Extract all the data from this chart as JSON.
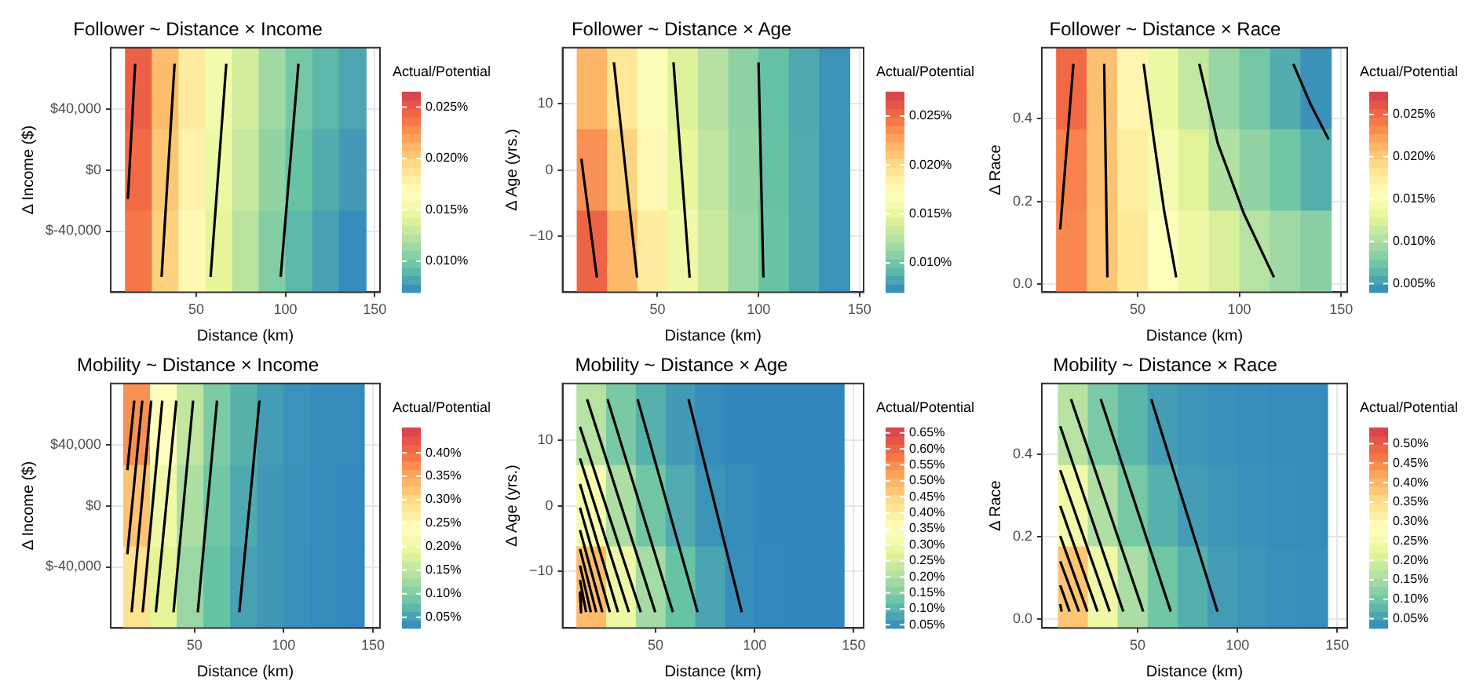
{
  "chart_data": [
    {
      "type": "heatmap",
      "title": "Follower ~ Distance × Income",
      "xlabel": "Distance (km)",
      "ylabel": "Δ Income ($)",
      "clabel": "Actual/Potential",
      "grid": true,
      "xlim": [
        2,
        153
      ],
      "xticks": [
        50,
        100,
        150
      ],
      "ylim": [
        -80000,
        80000
      ],
      "yticks": [
        {
          "value": -40000,
          "label": "$-40,000"
        },
        {
          "value": 0,
          "label": "$0"
        },
        {
          "value": 40000,
          "label": "$40,000"
        }
      ],
      "x": [
        17.5,
        32.5,
        47.5,
        62.5,
        77.5,
        92.5,
        107.5,
        122.5,
        137.5
      ],
      "cells": [
        [
          0.0247,
          0.0209,
          0.0182,
          0.0155,
          0.0135,
          0.0115,
          0.01,
          0.009,
          0.0082
        ],
        [
          0.0242,
          0.0204,
          0.0177,
          0.015,
          0.013,
          0.011,
          0.0095,
          0.0085,
          0.0077
        ],
        [
          0.0237,
          0.0199,
          0.0172,
          0.0145,
          0.0125,
          0.0105,
          0.009,
          0.008,
          0.0072
        ]
      ],
      "clim": [
        0.007,
        0.0265
      ],
      "cticks": [
        {
          "value": 0.01,
          "label": "0.010%"
        },
        {
          "value": 0.015,
          "label": "0.015%"
        },
        {
          "value": 0.02,
          "label": "0.020%"
        },
        {
          "value": 0.025,
          "label": "0.025%"
        }
      ],
      "series": [
        {
          "type": "line",
          "color": "#000000",
          "x": [
            11.6,
            15.7
          ],
          "values": [
            -19000,
            69500
          ]
        },
        {
          "type": "line",
          "color": "#000000",
          "x": [
            30.5,
            37.8
          ],
          "values": [
            -70000,
            69500
          ]
        },
        {
          "type": "line",
          "color": "#000000",
          "x": [
            58,
            66.8
          ],
          "values": [
            -70000,
            69500
          ]
        },
        {
          "type": "line",
          "color": "#000000",
          "x": [
            97.3,
            107.3
          ],
          "values": [
            -70000,
            69500
          ]
        }
      ]
    },
    {
      "type": "heatmap",
      "title": "Follower ~ Distance × Age",
      "xlabel": "Distance (km)",
      "ylabel": "Δ Age (yrs.)",
      "clabel": "Actual/Potential",
      "grid": true,
      "xlim": [
        3,
        152
      ],
      "xticks": [
        50,
        100,
        150
      ],
      "ylim": [
        -18.4,
        18.4
      ],
      "yticks": [
        {
          "value": -10,
          "label": "−10"
        },
        0,
        10
      ],
      "x": [
        17.5,
        32.5,
        47.5,
        62.5,
        77.5,
        92.5,
        107.5,
        122.5,
        137.5
      ],
      "cells": [
        [
          0.022,
          0.0192,
          0.0168,
          0.0143,
          0.0126,
          0.011,
          0.0095,
          0.0084,
          0.0075
        ],
        [
          0.0235,
          0.0205,
          0.0178,
          0.015,
          0.013,
          0.0112,
          0.0096,
          0.0085,
          0.0075
        ],
        [
          0.0255,
          0.0218,
          0.0188,
          0.0157,
          0.0134,
          0.0114,
          0.0097,
          0.0086,
          0.0075
        ]
      ],
      "clim": [
        0.007,
        0.0275
      ],
      "cticks": [
        {
          "value": 0.01,
          "label": "0.010%"
        },
        {
          "value": 0.015,
          "label": "0.015%"
        },
        {
          "value": 0.02,
          "label": "0.020%"
        },
        {
          "value": 0.025,
          "label": "0.025%"
        }
      ],
      "series": [
        {
          "type": "line",
          "color": "#000000",
          "x": [
            12.3,
            20
          ],
          "values": [
            1.7,
            -16.2
          ]
        },
        {
          "type": "line",
          "color": "#000000",
          "x": [
            28.4,
            39.9
          ],
          "values": [
            16.2,
            -16.2
          ]
        },
        {
          "type": "line",
          "color": "#000000",
          "x": [
            57.9,
            65.9
          ],
          "values": [
            16.2,
            -16.2
          ]
        },
        {
          "type": "line",
          "color": "#000000",
          "x": [
            100,
            102.4
          ],
          "values": [
            16.2,
            -16.2
          ]
        }
      ]
    },
    {
      "type": "heatmap",
      "title": "Follower ~ Distance × Race",
      "xlabel": "Distance (km)",
      "ylabel": "Δ Race",
      "clabel": "Actual/Potential",
      "grid": true,
      "xlim": [
        3,
        153
      ],
      "xticks": [
        50,
        100,
        150
      ],
      "ylim": [
        -0.019,
        0.572
      ],
      "yticks": [
        {
          "value": 0,
          "label": "0.0"
        },
        0.2,
        0.4
      ],
      "x": [
        17.5,
        32.5,
        47.5,
        62.5,
        77.5,
        92.5,
        107.5,
        122.5,
        137.5
      ],
      "cells": [
        [
          0.025,
          0.0207,
          0.0168,
          0.0137,
          0.0111,
          0.0091,
          0.0075,
          0.0059,
          0.0045
        ],
        [
          0.0238,
          0.0206,
          0.0175,
          0.0148,
          0.0126,
          0.0103,
          0.0088,
          0.0074,
          0.006
        ],
        [
          0.0235,
          0.0204,
          0.018,
          0.0157,
          0.0138,
          0.0122,
          0.0105,
          0.0094,
          0.0085
        ]
      ],
      "clim": [
        0.004,
        0.0277
      ],
      "cticks": [
        {
          "value": 0.005,
          "label": "0.005%"
        },
        {
          "value": 0.01,
          "label": "0.010%"
        },
        {
          "value": 0.015,
          "label": "0.015%"
        },
        {
          "value": 0.02,
          "label": "0.020%"
        },
        {
          "value": 0.025,
          "label": "0.025%"
        }
      ],
      "series": [
        {
          "type": "line",
          "color": "#000000",
          "x": [
            12,
            18.5
          ],
          "values": [
            0.133,
            0.533
          ]
        },
        {
          "type": "line",
          "color": "#000000",
          "x": [
            33.6,
            35.2
          ],
          "values": [
            0.533,
            0.017
          ]
        },
        {
          "type": "line",
          "color": "#000000",
          "x": [
            53,
            58,
            63,
            69
          ],
          "values": [
            0.533,
            0.35,
            0.18,
            0.017
          ]
        },
        {
          "type": "line",
          "color": "#000000",
          "x": [
            80.3,
            89.4,
            102.3,
            117
          ],
          "values": [
            0.533,
            0.341,
            0.17,
            0.017
          ]
        },
        {
          "type": "line",
          "color": "#000000",
          "x": [
            126.5,
            135.2,
            143.9
          ],
          "values": [
            0.533,
            0.433,
            0.35
          ]
        }
      ]
    },
    {
      "type": "heatmap",
      "title": "Mobility ~ Distance × Income",
      "xlabel": "Distance (km)",
      "ylabel": "Δ Income ($)",
      "clabel": "Actual/Potential",
      "grid": true,
      "xlim": [
        3,
        154
      ],
      "xticks": [
        50,
        100,
        150
      ],
      "ylim": [
        -80000,
        80000
      ],
      "yticks": [
        {
          "value": -40000,
          "label": "$-40,000"
        },
        {
          "value": 0,
          "label": "$0"
        },
        {
          "value": 40000,
          "label": "$40,000"
        }
      ],
      "x": [
        17.5,
        32.5,
        47.5,
        62.5,
        77.5,
        92.5,
        107.5,
        122.5,
        137.5
      ],
      "cells": [
        [
          0.371,
          0.238,
          0.153,
          0.098,
          0.066,
          0.045,
          0.037,
          0.031,
          0.03
        ],
        [
          0.325,
          0.21,
          0.136,
          0.089,
          0.057,
          0.042,
          0.035,
          0.03,
          0.028
        ],
        [
          0.288,
          0.186,
          0.121,
          0.08,
          0.05,
          0.04,
          0.034,
          0.03,
          0.028
        ]
      ],
      "clim": [
        0.027,
        0.454
      ],
      "cticks": [
        {
          "value": 0.05,
          "label": "0.05%"
        },
        {
          "value": 0.1,
          "label": "0.10%"
        },
        {
          "value": 0.15,
          "label": "0.15%"
        },
        {
          "value": 0.2,
          "label": "0.20%"
        },
        {
          "value": 0.25,
          "label": "0.25%"
        },
        {
          "value": 0.3,
          "label": "0.30%"
        },
        {
          "value": 0.35,
          "label": "0.35%"
        },
        {
          "value": 0.4,
          "label": "0.40%"
        }
      ],
      "series": [
        {
          "type": "line",
          "color": "#000000",
          "x": [
            12.3,
            16.2
          ],
          "values": [
            23300,
            68800
          ]
        },
        {
          "type": "line",
          "color": "#000000",
          "x": [
            12.3,
            20.7
          ],
          "values": [
            -31700,
            68800
          ]
        },
        {
          "type": "line",
          "color": "#000000",
          "x": [
            14.7,
            25.7
          ],
          "values": [
            -69700,
            68800
          ]
        },
        {
          "type": "line",
          "color": "#000000",
          "x": [
            20.9,
            31.9
          ],
          "values": [
            -69700,
            68800
          ]
        },
        {
          "type": "line",
          "color": "#000000",
          "x": [
            28.3,
            39.8
          ],
          "values": [
            -69700,
            68800
          ]
        },
        {
          "type": "line",
          "color": "#000000",
          "x": [
            38.2,
            49.2
          ],
          "values": [
            -69700,
            68800
          ]
        },
        {
          "type": "line",
          "color": "#000000",
          "x": [
            51.8,
            62.6
          ],
          "values": [
            -69700,
            68800
          ]
        },
        {
          "type": "line",
          "color": "#000000",
          "x": [
            75.1,
            86.4
          ],
          "values": [
            -69700,
            68800
          ]
        }
      ]
    },
    {
      "type": "heatmap",
      "title": "Mobility ~ Distance × Age",
      "xlabel": "Distance (km)",
      "ylabel": "Δ Age (yrs.)",
      "clabel": "Actual/Potential",
      "grid": true,
      "xlim": [
        3,
        155
      ],
      "xticks": [
        50,
        100,
        150
      ],
      "ylim": [
        -18.6,
        18.6
      ],
      "yticks": [
        {
          "value": -10,
          "label": "−10"
        },
        0,
        10
      ],
      "x": [
        17.5,
        32.5,
        47.5,
        62.5,
        77.5,
        92.5,
        107.5,
        122.5,
        137.5
      ],
      "cells": [
        [
          0.212,
          0.14,
          0.094,
          0.064,
          0.045,
          0.04,
          0.04,
          0.04,
          0.04
        ],
        [
          0.322,
          0.2,
          0.131,
          0.086,
          0.055,
          0.045,
          0.04,
          0.04,
          0.04
        ],
        [
          0.488,
          0.3,
          0.19,
          0.12,
          0.078,
          0.048,
          0.042,
          0.04,
          0.04
        ]
      ],
      "clim": [
        0.04,
        0.667
      ],
      "cticks": [
        {
          "value": 0.05,
          "label": "0.05%"
        },
        {
          "value": 0.1,
          "label": "0.10%"
        },
        {
          "value": 0.15,
          "label": "0.15%"
        },
        {
          "value": 0.2,
          "label": "0.20%"
        },
        {
          "value": 0.25,
          "label": "0.25%"
        },
        {
          "value": 0.3,
          "label": "0.30%"
        },
        {
          "value": 0.35,
          "label": "0.35%"
        },
        {
          "value": 0.4,
          "label": "0.40%"
        },
        {
          "value": 0.45,
          "label": "0.45%"
        },
        {
          "value": 0.5,
          "label": "0.50%"
        },
        {
          "value": 0.55,
          "label": "0.55%"
        },
        {
          "value": 0.6,
          "label": "0.60%"
        },
        {
          "value": 0.65,
          "label": "0.65%"
        }
      ],
      "series": [
        {
          "type": "line",
          "color": "#000000",
          "x": [
            66.6,
            93.5
          ],
          "values": [
            16.2,
            -16.2
          ]
        },
        {
          "type": "line",
          "color": "#000000",
          "x": [
            40.9,
            71.2
          ],
          "values": [
            16.2,
            -16.2
          ]
        },
        {
          "type": "line",
          "color": "#000000",
          "x": [
            25.7,
            58.7
          ],
          "values": [
            16.2,
            -16.2
          ]
        },
        {
          "type": "line",
          "color": "#000000",
          "x": [
            15.4,
            49.8
          ],
          "values": [
            16.2,
            -16.2
          ]
        },
        {
          "type": "line",
          "color": "#000000",
          "x": [
            11.8,
            42.5
          ],
          "values": [
            12.0,
            -16.2
          ]
        },
        {
          "type": "line",
          "color": "#000000",
          "x": [
            11.8,
            36.5
          ],
          "values": [
            7.2,
            -16.2
          ]
        },
        {
          "type": "line",
          "color": "#000000",
          "x": [
            11.8,
            31.0
          ],
          "values": [
            3.3,
            -16.2
          ]
        },
        {
          "type": "line",
          "color": "#000000",
          "x": [
            11.8,
            26.9
          ],
          "values": [
            -0.3,
            -16.2
          ]
        },
        {
          "type": "line",
          "color": "#000000",
          "x": [
            11.8,
            23.1
          ],
          "values": [
            -3.7,
            -16.2
          ]
        },
        {
          "type": "line",
          "color": "#000000",
          "x": [
            11.8,
            20.0
          ],
          "values": [
            -6.6,
            -16.2
          ]
        },
        {
          "type": "line",
          "color": "#000000",
          "x": [
            11.8,
            17.3
          ],
          "values": [
            -9.1,
            -16.2
          ]
        },
        {
          "type": "line",
          "color": "#000000",
          "x": [
            11.8,
            14.9
          ],
          "values": [
            -11.3,
            -16.2
          ]
        },
        {
          "type": "line",
          "color": "#000000",
          "x": [
            11.8,
            12.3
          ],
          "values": [
            -13.1,
            -16.2
          ]
        }
      ]
    },
    {
      "type": "heatmap",
      "title": "Mobility ~ Distance × Race",
      "xlabel": "Distance (km)",
      "ylabel": "Δ Race",
      "clabel": "Actual/Potential",
      "grid": true,
      "xlim": [
        2,
        155
      ],
      "xticks": [
        50,
        100,
        150
      ],
      "ylim": [
        -0.022,
        0.573
      ],
      "yticks": [
        {
          "value": 0,
          "label": "0.0"
        },
        0.2,
        0.4
      ],
      "x": [
        17.5,
        32.5,
        47.5,
        62.5,
        77.5,
        92.5,
        107.5,
        122.5,
        137.5
      ],
      "cells": [
        [
          0.168,
          0.11,
          0.076,
          0.048,
          0.04,
          0.035,
          0.032,
          0.03,
          0.03
        ],
        [
          0.25,
          0.161,
          0.106,
          0.072,
          0.047,
          0.04,
          0.035,
          0.032,
          0.03
        ],
        [
          0.384,
          0.244,
          0.156,
          0.1,
          0.069,
          0.047,
          0.04,
          0.035,
          0.032
        ]
      ],
      "clim": [
        0.026,
        0.542
      ],
      "cticks": [
        {
          "value": 0.05,
          "label": "0.05%"
        },
        {
          "value": 0.1,
          "label": "0.10%"
        },
        {
          "value": 0.15,
          "label": "0.15%"
        },
        {
          "value": 0.2,
          "label": "0.20%"
        },
        {
          "value": 0.25,
          "label": "0.25%"
        },
        {
          "value": 0.3,
          "label": "0.30%"
        },
        {
          "value": 0.35,
          "label": "0.35%"
        },
        {
          "value": 0.4,
          "label": "0.40%"
        },
        {
          "value": 0.45,
          "label": "0.45%"
        },
        {
          "value": 0.5,
          "label": "0.50%"
        }
      ],
      "series": [
        {
          "type": "line",
          "color": "#000000",
          "x": [
            56.8,
            90.0
          ],
          "values": [
            0.535,
            0.018
          ]
        },
        {
          "type": "line",
          "color": "#000000",
          "x": [
            31.5,
            66.6
          ],
          "values": [
            0.535,
            0.018
          ]
        },
        {
          "type": "line",
          "color": "#000000",
          "x": [
            16.6,
            52.8
          ],
          "values": [
            0.535,
            0.018
          ]
        },
        {
          "type": "line",
          "color": "#000000",
          "x": [
            11.2,
            42.8
          ],
          "values": [
            0.469,
            0.018
          ]
        },
        {
          "type": "line",
          "color": "#000000",
          "x": [
            11.2,
            36.0
          ],
          "values": [
            0.362,
            0.018
          ]
        },
        {
          "type": "line",
          "color": "#000000",
          "x": [
            11.2,
            29.9
          ],
          "values": [
            0.275,
            0.018
          ]
        },
        {
          "type": "line",
          "color": "#000000",
          "x": [
            11.2,
            24.8
          ],
          "values": [
            0.202,
            0.018
          ]
        },
        {
          "type": "line",
          "color": "#000000",
          "x": [
            11.2,
            20.6
          ],
          "values": [
            0.14,
            0.018
          ]
        },
        {
          "type": "line",
          "color": "#000000",
          "x": [
            11.2,
            15.9
          ],
          "values": [
            0.082,
            0.018
          ]
        },
        {
          "type": "line",
          "color": "#000000",
          "x": [
            11.2,
            11.9
          ],
          "values": [
            0.036,
            0.018
          ]
        }
      ]
    }
  ]
}
